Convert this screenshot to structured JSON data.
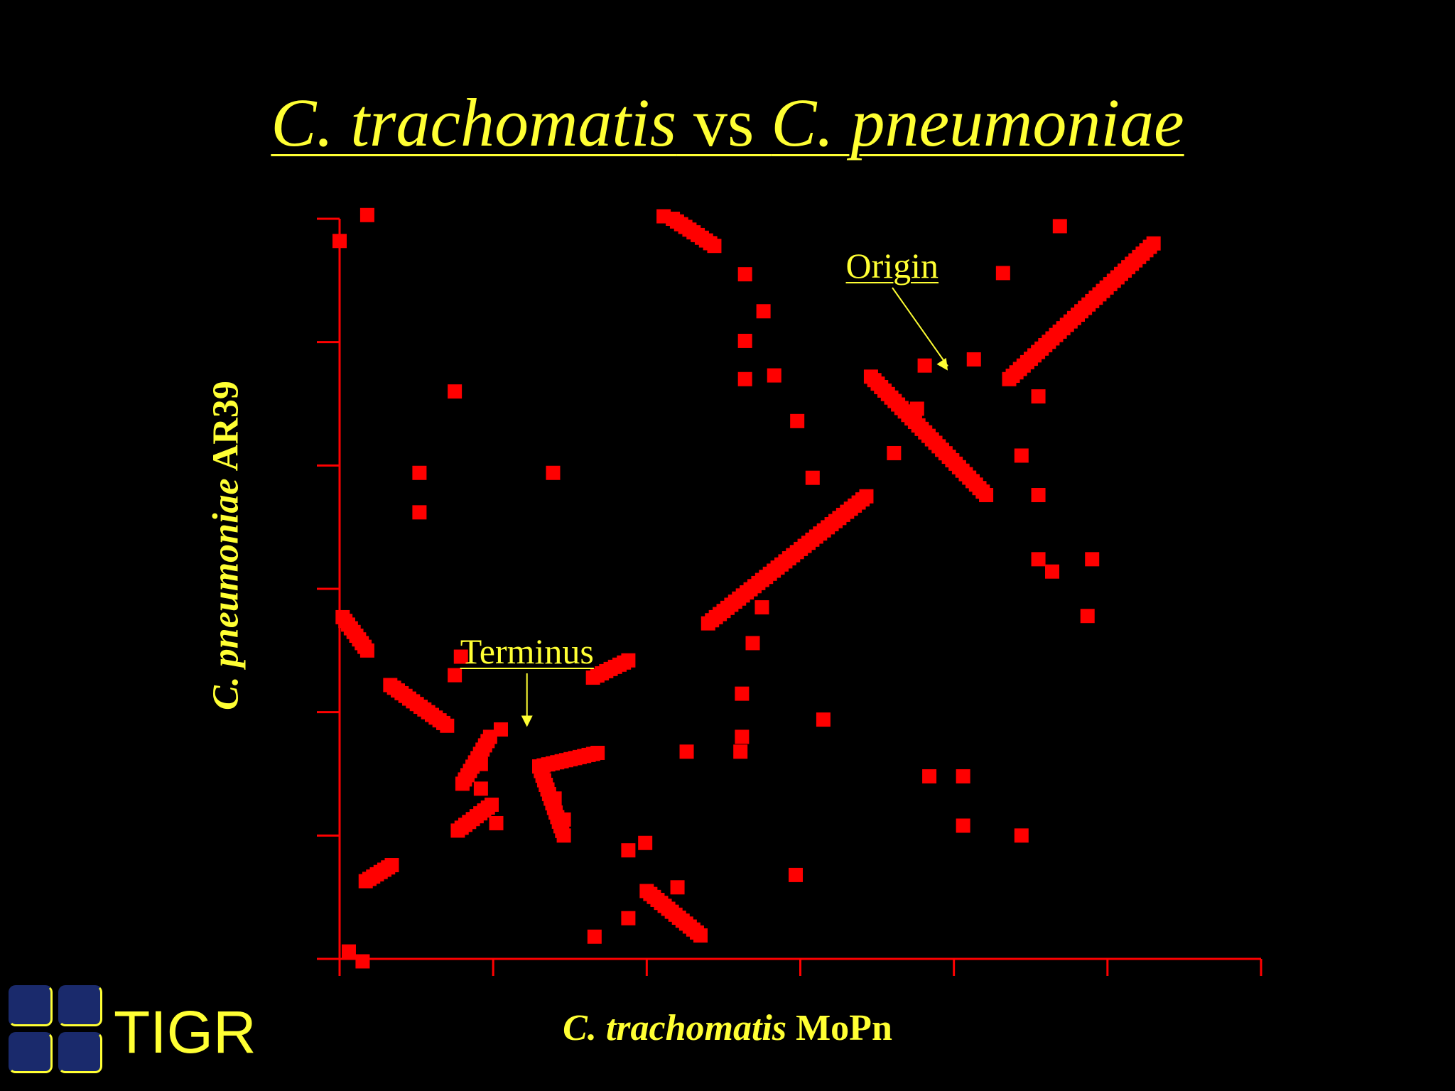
{
  "slide": {
    "title_part1": "C. trachomatis",
    "title_part2": " vs ",
    "title_part3": "C. pneumoniae",
    "logo_text": "TIGR"
  },
  "colors": {
    "background": "#000000",
    "text": "#ffff33",
    "marks": "#ff0000",
    "axes": "#ff0000"
  },
  "chart_data": {
    "type": "scatter",
    "title": "C. trachomatis vs C. pneumoniae",
    "xlabel_italic": "C. trachomatis",
    "xlabel_rest": " MoPn",
    "ylabel_italic": "C. pneumoniae",
    "ylabel_rest": " AR39",
    "xlim": [
      0,
      6
    ],
    "ylim": [
      0,
      6
    ],
    "x_ticks": [
      0,
      1,
      2,
      3,
      4,
      5,
      6
    ],
    "y_ticks": [
      0,
      1,
      2,
      3,
      4,
      5,
      6
    ],
    "tick_labels_shown": false,
    "grid": false,
    "legend": "none",
    "annotations": [
      {
        "text": "Terminus",
        "x": 1.22,
        "y": 1.88
      },
      {
        "text": "Origin",
        "x": 3.96,
        "y": 4.77
      }
    ],
    "segments": [
      {
        "x1": 3.46,
        "y1": 4.72,
        "x2": 4.21,
        "y2": 3.76
      },
      {
        "x1": 4.36,
        "y1": 4.7,
        "x2": 5.3,
        "y2": 5.8
      },
      {
        "x1": 2.4,
        "y1": 2.72,
        "x2": 3.43,
        "y2": 3.75
      },
      {
        "x1": 1.65,
        "y1": 2.28,
        "x2": 1.88,
        "y2": 2.42
      },
      {
        "x1": 1.3,
        "y1": 1.56,
        "x2": 1.68,
        "y2": 1.67
      },
      {
        "x1": 1.3,
        "y1": 1.56,
        "x2": 1.46,
        "y2": 1.0
      },
      {
        "x1": 0.33,
        "y1": 2.22,
        "x2": 0.7,
        "y2": 1.89
      },
      {
        "x1": 0.02,
        "y1": 2.77,
        "x2": 0.18,
        "y2": 2.5
      },
      {
        "x1": 2.0,
        "y1": 0.55,
        "x2": 2.35,
        "y2": 0.19
      },
      {
        "x1": 0.17,
        "y1": 0.63,
        "x2": 0.34,
        "y2": 0.76
      },
      {
        "x1": 2.17,
        "y1": 6.0,
        "x2": 2.44,
        "y2": 5.78
      },
      {
        "x1": 0.8,
        "y1": 1.42,
        "x2": 0.98,
        "y2": 1.8
      },
      {
        "x1": 0.77,
        "y1": 1.04,
        "x2": 0.99,
        "y2": 1.25
      }
    ],
    "points": [
      {
        "x": 0.0,
        "y": 5.82
      },
      {
        "x": 0.18,
        "y": 6.03
      },
      {
        "x": 2.11,
        "y": 6.02
      },
      {
        "x": 4.69,
        "y": 5.94
      },
      {
        "x": 4.32,
        "y": 5.56
      },
      {
        "x": 2.64,
        "y": 5.55
      },
      {
        "x": 2.76,
        "y": 5.25
      },
      {
        "x": 2.64,
        "y": 5.01
      },
      {
        "x": 2.64,
        "y": 4.7
      },
      {
        "x": 2.83,
        "y": 4.73
      },
      {
        "x": 3.81,
        "y": 4.81
      },
      {
        "x": 4.13,
        "y": 4.86
      },
      {
        "x": 4.55,
        "y": 4.56
      },
      {
        "x": 2.98,
        "y": 4.36
      },
      {
        "x": 4.44,
        "y": 4.08
      },
      {
        "x": 4.55,
        "y": 3.76
      },
      {
        "x": 4.55,
        "y": 3.24
      },
      {
        "x": 4.64,
        "y": 3.14
      },
      {
        "x": 4.9,
        "y": 3.24
      },
      {
        "x": 4.87,
        "y": 2.78
      },
      {
        "x": 3.08,
        "y": 3.9
      },
      {
        "x": 3.61,
        "y": 4.1
      },
      {
        "x": 3.76,
        "y": 4.46
      },
      {
        "x": 0.75,
        "y": 4.6
      },
      {
        "x": 0.52,
        "y": 3.94
      },
      {
        "x": 0.52,
        "y": 3.62
      },
      {
        "x": 1.39,
        "y": 3.94
      },
      {
        "x": 2.75,
        "y": 2.85
      },
      {
        "x": 2.69,
        "y": 2.56
      },
      {
        "x": 2.62,
        "y": 2.15
      },
      {
        "x": 2.62,
        "y": 1.8
      },
      {
        "x": 3.15,
        "y": 1.94
      },
      {
        "x": 0.79,
        "y": 2.45
      },
      {
        "x": 0.75,
        "y": 2.3
      },
      {
        "x": 1.05,
        "y": 1.86
      },
      {
        "x": 0.92,
        "y": 1.58
      },
      {
        "x": 0.92,
        "y": 1.38
      },
      {
        "x": 1.02,
        "y": 1.1
      },
      {
        "x": 1.4,
        "y": 1.3
      },
      {
        "x": 1.46,
        "y": 1.13
      },
      {
        "x": 2.26,
        "y": 1.68
      },
      {
        "x": 2.61,
        "y": 1.68
      },
      {
        "x": 3.84,
        "y": 1.48
      },
      {
        "x": 4.06,
        "y": 1.48
      },
      {
        "x": 4.06,
        "y": 1.08
      },
      {
        "x": 4.44,
        "y": 1.0
      },
      {
        "x": 2.97,
        "y": 0.68
      },
      {
        "x": 1.88,
        "y": 0.88
      },
      {
        "x": 1.99,
        "y": 0.94
      },
      {
        "x": 2.2,
        "y": 0.58
      },
      {
        "x": 1.88,
        "y": 0.33
      },
      {
        "x": 1.66,
        "y": 0.18
      },
      {
        "x": 0.06,
        "y": 0.06
      },
      {
        "x": 0.15,
        "y": -0.02
      }
    ]
  }
}
